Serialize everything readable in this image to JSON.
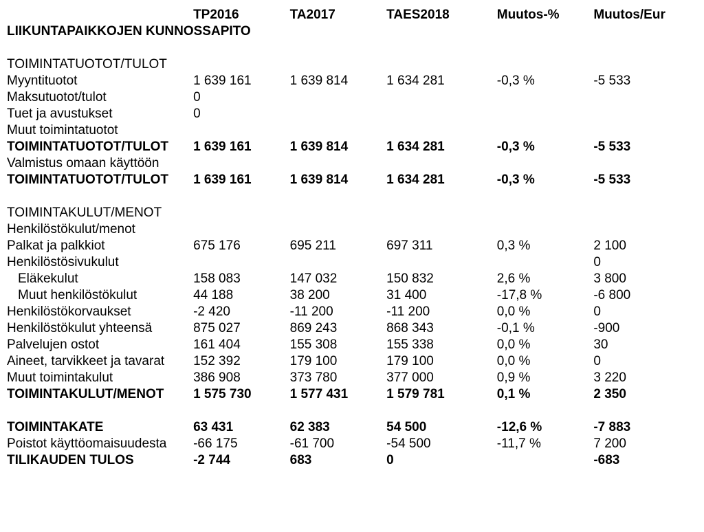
{
  "headers": {
    "tp2016": "TP2016",
    "ta2017": "TA2017",
    "taes2018": "TAES2018",
    "muutos_pct": "Muutos-%",
    "muutos_eur": "Muutos/Eur"
  },
  "title": "LIIKUNTAPAIKKOJEN KUNNOSSAPITO",
  "section1_title": "TOIMINTATUOTOT/TULOT",
  "rows1": {
    "myyntituotot": {
      "label": "Myyntituotot",
      "tp2016": "1 639 161",
      "ta2017": "1 639 814",
      "taes2018": "1 634 281",
      "pct": "-0,3 %",
      "eur": "-5 533"
    },
    "maksutuotot": {
      "label": "Maksutuotot/tulot",
      "tp2016": "0",
      "ta2017": "",
      "taes2018": "",
      "pct": "",
      "eur": ""
    },
    "tuet": {
      "label": "Tuet ja avustukset",
      "tp2016": "0",
      "ta2017": "",
      "taes2018": "",
      "pct": "",
      "eur": ""
    },
    "muut": {
      "label": "Muut toimintatuotot",
      "tp2016": "",
      "ta2017": "",
      "taes2018": "",
      "pct": "",
      "eur": ""
    },
    "total1": {
      "label": "TOIMINTATUOTOT/TULOT",
      "tp2016": "1 639 161",
      "ta2017": "1 639 814",
      "taes2018": "1 634 281",
      "pct": "-0,3 %",
      "eur": "-5 533"
    },
    "valmistus": {
      "label": "Valmistus omaan käyttöön",
      "tp2016": "",
      "ta2017": "",
      "taes2018": "",
      "pct": "",
      "eur": ""
    },
    "total2": {
      "label": "TOIMINTATUOTOT/TULOT",
      "tp2016": "1 639 161",
      "ta2017": "1 639 814",
      "taes2018": "1 634 281",
      "pct": "-0,3 %",
      "eur": "-5 533"
    }
  },
  "section2_title": "TOIMINTAKULUT/MENOT",
  "rows2": {
    "henkilostokulut": {
      "label": "Henkilöstökulut/menot"
    },
    "palkat": {
      "label": "Palkat ja palkkiot",
      "tp2016": "675 176",
      "ta2017": "695 211",
      "taes2018": "697 311",
      "pct": "0,3 %",
      "eur": "2 100"
    },
    "henkilostosivu": {
      "label": "Henkilöstösivukulut",
      "tp2016": "",
      "ta2017": "",
      "taes2018": "",
      "pct": "",
      "eur": "0"
    },
    "elakekulut": {
      "label": "Eläkekulut",
      "tp2016": "158 083",
      "ta2017": "147 032",
      "taes2018": "150 832",
      "pct": "2,6 %",
      "eur": "3 800"
    },
    "muut_henk": {
      "label": "Muut henkilöstökulut",
      "tp2016": "44 188",
      "ta2017": "38 200",
      "taes2018": "31 400",
      "pct": "-17,8 %",
      "eur": "-6 800"
    },
    "korvaukset": {
      "label": "Henkilöstökorvaukset",
      "tp2016": "-2 420",
      "ta2017": "-11 200",
      "taes2018": "-11 200",
      "pct": "0,0 %",
      "eur": "0"
    },
    "henk_total": {
      "label": "Henkilöstökulut yhteensä",
      "tp2016": "875 027",
      "ta2017": "869 243",
      "taes2018": "868 343",
      "pct": "-0,1 %",
      "eur": "-900"
    },
    "palvelut": {
      "label": "Palvelujen ostot",
      "tp2016": "161 404",
      "ta2017": "155 308",
      "taes2018": "155 338",
      "pct": "0,0 %",
      "eur": "30"
    },
    "aineet": {
      "label": "Aineet, tarvikkeet ja tavarat",
      "tp2016": "152 392",
      "ta2017": "179 100",
      "taes2018": "179 100",
      "pct": "0,0 %",
      "eur": "0"
    },
    "muut_kulut": {
      "label": "Muut toimintakulut",
      "tp2016": "386 908",
      "ta2017": "373 780",
      "taes2018": "377 000",
      "pct": "0,9 %",
      "eur": "3 220"
    },
    "total": {
      "label": "TOIMINTAKULUT/MENOT",
      "tp2016": "1 575 730",
      "ta2017": "1 577 431",
      "taes2018": "1 579 781",
      "pct": "0,1 %",
      "eur": "2 350"
    }
  },
  "rows3": {
    "toimintakate": {
      "label": "TOIMINTAKATE",
      "tp2016": "63 431",
      "ta2017": "62 383",
      "taes2018": "54 500",
      "pct": "-12,6 %",
      "eur": "-7 883"
    },
    "poistot": {
      "label": "Poistot käyttöomaisuudesta",
      "tp2016": "-66 175",
      "ta2017": "-61 700",
      "taes2018": "-54 500",
      "pct": "-11,7 %",
      "eur": "7 200"
    },
    "tulos": {
      "label": "TILIKAUDEN TULOS",
      "tp2016": "-2 744",
      "ta2017": "683",
      "taes2018": "0",
      "pct": "",
      "eur": "-683"
    }
  }
}
